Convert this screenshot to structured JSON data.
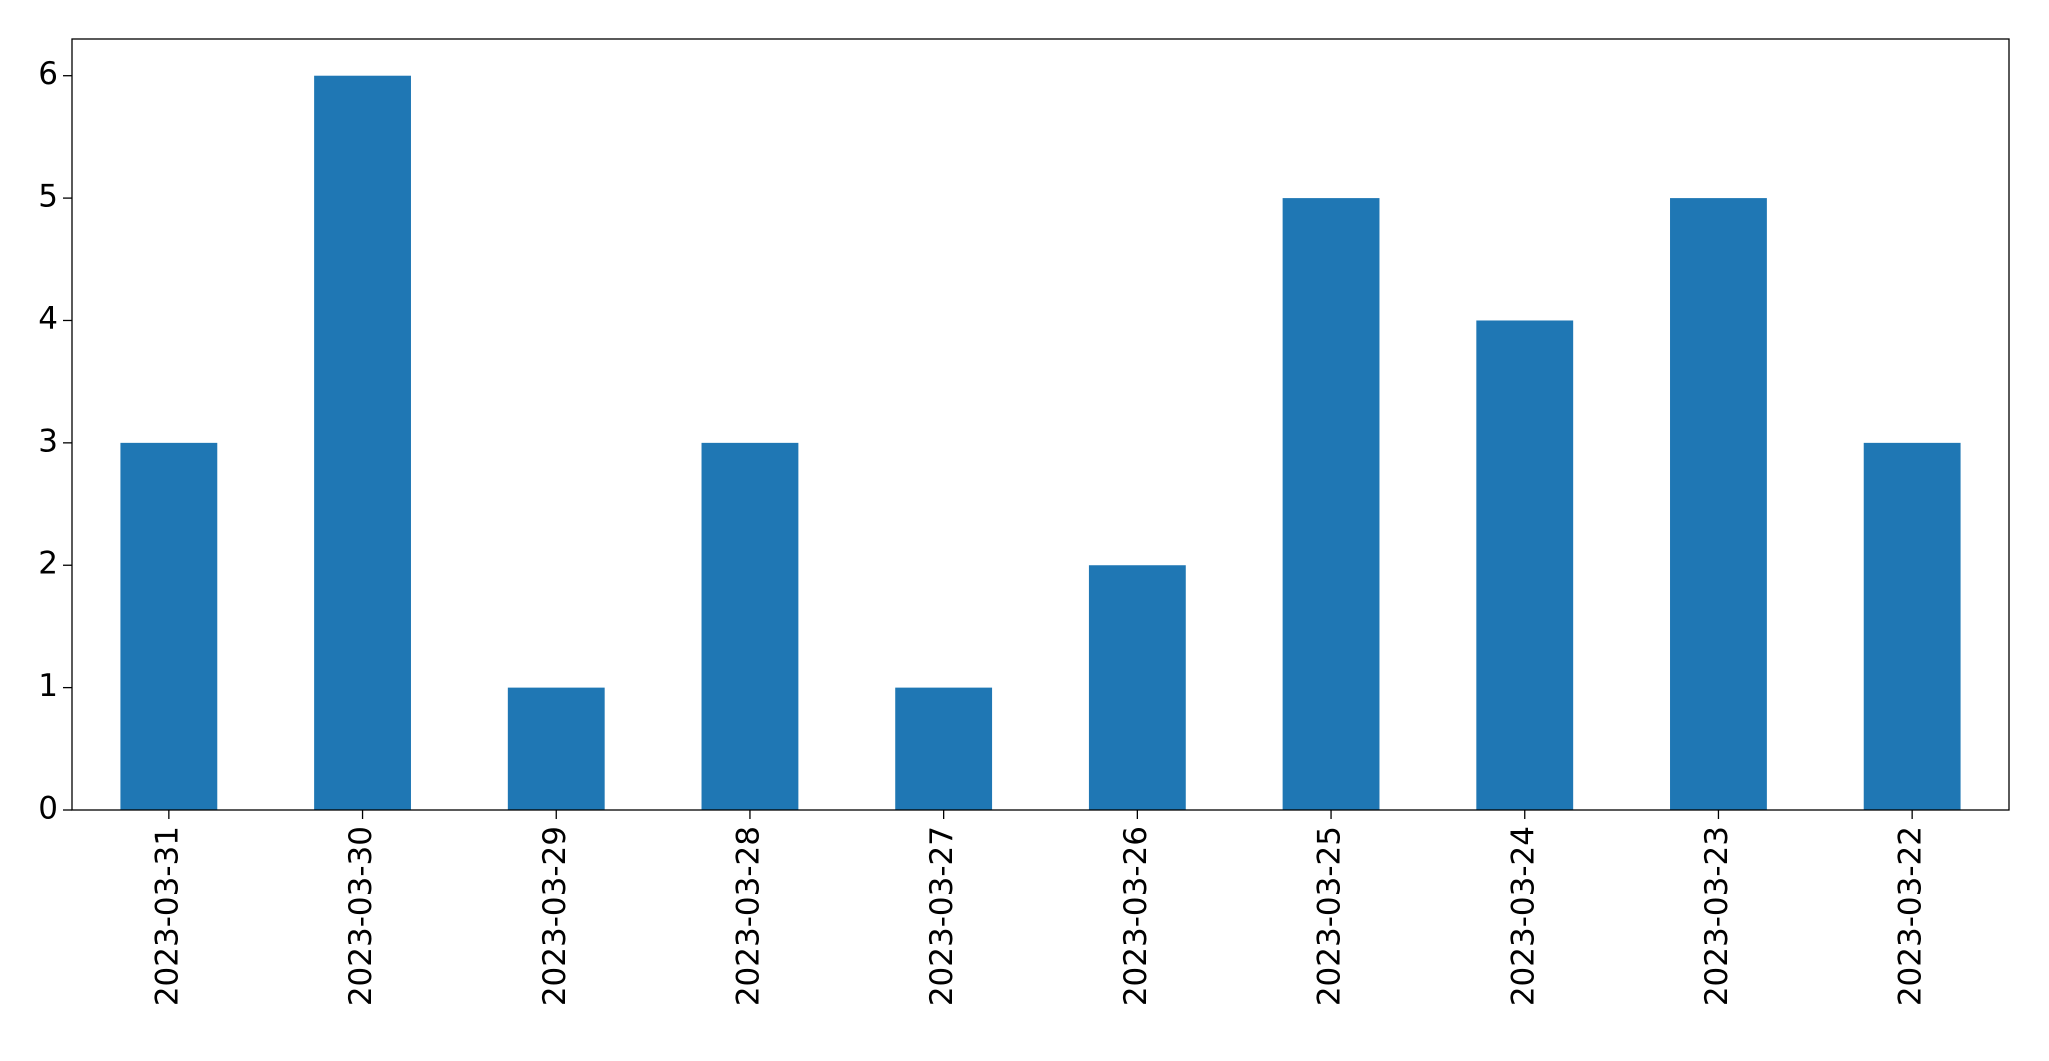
{
  "chart_data": {
    "type": "bar",
    "categories": [
      "2023-03-31",
      "2023-03-30",
      "2023-03-29",
      "2023-03-28",
      "2023-03-27",
      "2023-03-26",
      "2023-03-25",
      "2023-03-24",
      "2023-03-23",
      "2023-03-22"
    ],
    "values": [
      3,
      6,
      1,
      3,
      1,
      2,
      5,
      4,
      5,
      3
    ],
    "color": "#1f77b4",
    "ylim": [
      0,
      6.3
    ],
    "yticks": [
      0,
      1,
      2,
      3,
      4,
      5,
      6
    ],
    "grid": false
  }
}
